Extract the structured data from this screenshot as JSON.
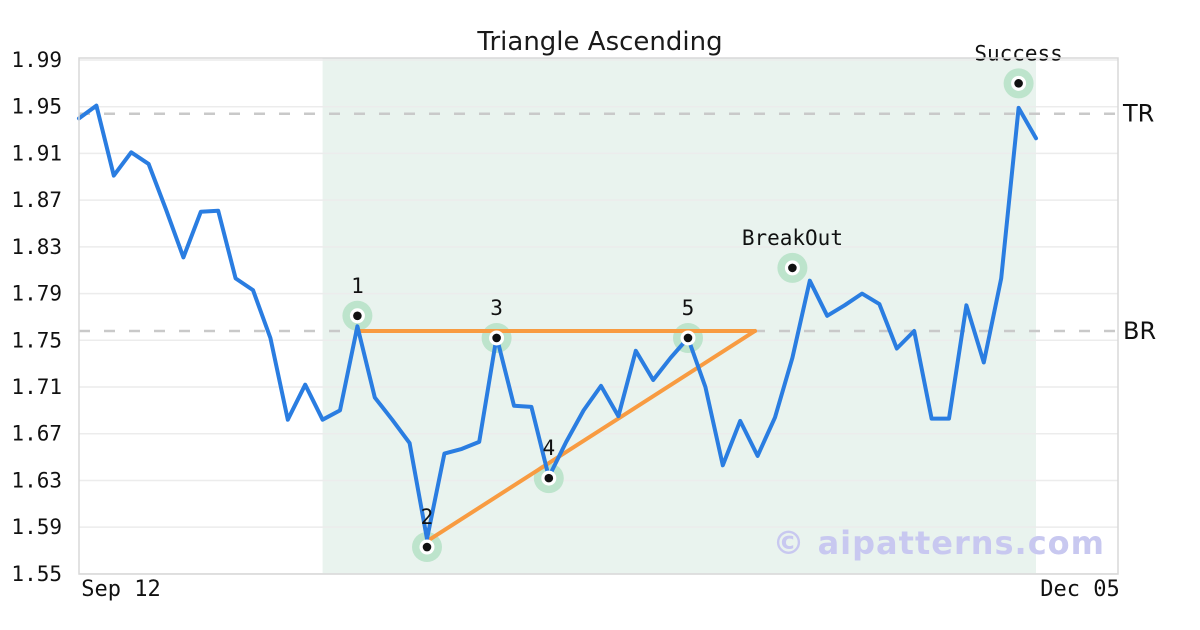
{
  "title": "Triangle Ascending",
  "watermark": "© aipatterns.com",
  "colors": {
    "price_line": "#2a7de1",
    "pattern_line": "#f89b41",
    "shade": "#e9f3ee",
    "marker_fill": "#bde4cc",
    "marker_dot": "#111111",
    "grid": "#ececec",
    "dashed_level": "#c9c9c9",
    "spine": "#d8d8d8",
    "tick_text": "#111111",
    "watermark": "#c8c8f0"
  },
  "axes": {
    "y_ticks": [
      "1.99",
      "1.95",
      "1.91",
      "1.87",
      "1.83",
      "1.79",
      "1.75",
      "1.71",
      "1.67",
      "1.63",
      "1.59",
      "1.55"
    ],
    "x_ticks": [
      "Sep 12",
      "Dec 05"
    ]
  },
  "levels": [
    {
      "label": "TR",
      "price": 1.944
    },
    {
      "label": "BR",
      "price": 1.758
    }
  ],
  "chart_data": {
    "type": "line",
    "title": "Triangle Ascending",
    "pattern_name": "ascending-triangle",
    "x_start_label": "Sep 12",
    "x_end_label": "Dec 05",
    "ylim": [
      1.55,
      1.99
    ],
    "grid": "horizontal",
    "prices": [
      1.94,
      1.951,
      1.891,
      1.911,
      1.901,
      1.862,
      1.821,
      1.86,
      1.861,
      1.803,
      1.793,
      1.752,
      1.682,
      1.712,
      1.682,
      1.69,
      1.762,
      1.701,
      1.682,
      1.662,
      1.58,
      1.653,
      1.657,
      1.663,
      1.753,
      1.694,
      1.693,
      1.633,
      1.663,
      1.69,
      1.711,
      1.685,
      1.741,
      1.716,
      1.735,
      1.752,
      1.71,
      1.643,
      1.681,
      1.651,
      1.684,
      1.735,
      1.801,
      1.771,
      1.78,
      1.79,
      1.781,
      1.743,
      1.758,
      1.683,
      1.683,
      1.78,
      1.731,
      1.803,
      1.949,
      1.923
    ],
    "shade_span_indices": [
      14,
      55
    ],
    "pattern": {
      "resistance": {
        "from_index": 16,
        "to_index": 38.85,
        "price": 1.758
      },
      "support": {
        "from_index": 20,
        "from_price": 1.578,
        "to_index": 38.85,
        "to_price": 1.758
      }
    },
    "markers": [
      {
        "label": "1",
        "index": 16,
        "price": 1.771
      },
      {
        "label": "2",
        "index": 20,
        "price": 1.573
      },
      {
        "label": "3",
        "index": 24,
        "price": 1.752
      },
      {
        "label": "4",
        "index": 27,
        "price": 1.632
      },
      {
        "label": "5",
        "index": 35,
        "price": 1.752
      },
      {
        "label": "BreakOut",
        "index": 41,
        "price": 1.812
      },
      {
        "label": "Success",
        "index": 54,
        "price": 1.97
      }
    ]
  }
}
